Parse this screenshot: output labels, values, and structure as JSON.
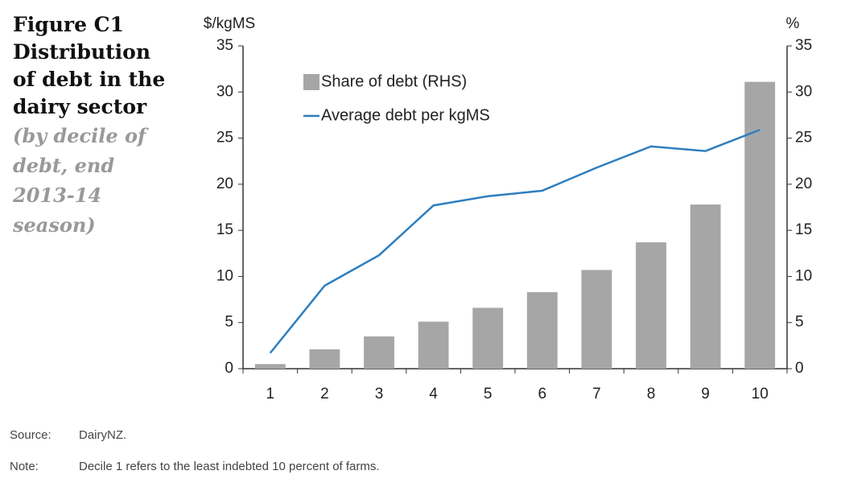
{
  "chart_data": {
    "type": "bar",
    "title": "Figure C1 Distribution of debt in the dairy sector",
    "subtitle": "(by decile of debt, end 2013-14 season)",
    "y_label": "$/kgMS",
    "y2_label": "%",
    "categories": [
      "1",
      "2",
      "3",
      "4",
      "5",
      "6",
      "7",
      "8",
      "9",
      "10"
    ],
    "series": [
      {
        "name": "Share of debt (RHS)",
        "type": "bar",
        "axis": "y2",
        "color": "#a6a6a6",
        "values": [
          0.5,
          2.1,
          3.5,
          5.1,
          6.6,
          8.3,
          10.7,
          13.7,
          17.8,
          31.1
        ]
      },
      {
        "name": "Average debt per kgMS",
        "type": "line",
        "color": "#2e7ebf",
        "values": [
          1.7,
          9.0,
          12.3,
          17.7,
          18.7,
          19.3,
          21.8,
          24.1,
          23.6,
          25.9
        ]
      }
    ],
    "ylim": [
      0,
      35
    ],
    "yticks": [
      0,
      5,
      10,
      15,
      20,
      25,
      30,
      35
    ],
    "y2lim": [
      0,
      35
    ],
    "y2ticks": [
      0,
      5,
      10,
      15,
      20,
      25,
      30,
      35
    ],
    "legend": "upper left",
    "grid": false,
    "source_label": "Source:",
    "source": "DairyNZ.",
    "note_label": "Note:",
    "note": "Decile 1 refers to the least indebted 10 percent of farms."
  }
}
